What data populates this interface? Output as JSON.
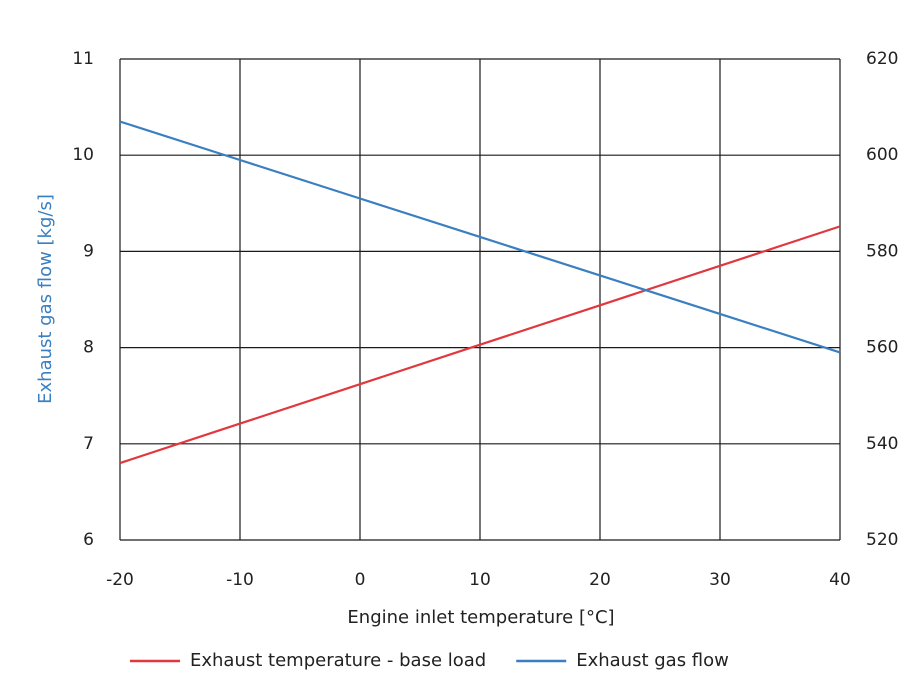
{
  "chart_data": {
    "type": "line",
    "xlabel": "Engine inlet temperature [°C]",
    "ylabel": "Exhaust gas flow [kg/s]",
    "ylabel_color": "#3a7fc1",
    "x": [
      -20,
      -10,
      0,
      10,
      20,
      30,
      40
    ],
    "series": [
      {
        "name": "Exhaust temperature - base load",
        "color": "#e0383e",
        "axis": "y2",
        "values": [
          536,
          544.2,
          552.4,
          560.6,
          568.8,
          577,
          585.2
        ]
      },
      {
        "name": "Exhaust gas flow",
        "color": "#3a7fc1",
        "values": [
          10.35,
          9.95,
          9.55,
          9.15,
          8.75,
          8.35,
          7.95
        ]
      }
    ],
    "xlim": [
      -20,
      40
    ],
    "xticks": [
      -20,
      -10,
      0,
      10,
      20,
      30,
      40
    ],
    "ylim": [
      6,
      11
    ],
    "yticks": [
      6,
      7,
      8,
      9,
      10,
      11
    ],
    "y2lim": [
      520,
      620
    ],
    "y2ticks": [
      520,
      540,
      560,
      580,
      600,
      620
    ],
    "grid": true,
    "legend": "bottom"
  }
}
